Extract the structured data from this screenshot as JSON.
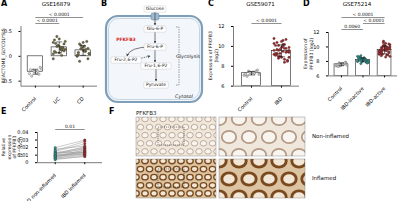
{
  "chart_data": [
    {
      "panel": "A",
      "type": "bar",
      "title": "GSE16879",
      "y_label": "REACTOME_GLYCOLYSIS",
      "categories": [
        "Control",
        "UC",
        "CD"
      ],
      "values": [
        -0.31,
        0.18,
        0.12
      ],
      "errors": [
        0.05,
        0.11,
        0.1
      ],
      "points": [
        [
          -0.35,
          -0.3,
          -0.28,
          -0.25,
          -0.33,
          -0.4,
          -0.22,
          -0.3,
          -0.27,
          -0.36,
          -0.31
        ],
        [
          0.05,
          0.12,
          0.2,
          0.3,
          0.15,
          0.08,
          0.25,
          0.35,
          0.1,
          0.18,
          0.22,
          0.28,
          0.02,
          0.4,
          0.14,
          0.19,
          0.26,
          0.11,
          0.07,
          0.33,
          0.16,
          0.21,
          -0.05,
          0.13
        ],
        [
          0.0,
          0.1,
          0.15,
          0.05,
          0.2,
          0.25,
          -0.05,
          0.12,
          0.08,
          0.3,
          0.18,
          0.02,
          0.14,
          0.22,
          0.06,
          0.1,
          -0.1,
          0.16,
          0.28,
          0.04
        ]
      ],
      "colors": [
        "#e0e0e0",
        "#6e6a3e",
        "#6e6a3e"
      ],
      "ylim": [
        -0.6,
        0.6
      ],
      "yticks": [
        -0.5,
        0,
        0.5
      ],
      "annotations": [
        {
          "text": "< 0.0001",
          "between": [
            "Control",
            "UC"
          ]
        },
        {
          "text": "< 0.0001",
          "between": [
            "Control",
            "CD"
          ]
        }
      ]
    },
    {
      "panel": "C",
      "type": "bar",
      "title": "GSE59071",
      "y_label": "Expression of PFKFB3 (log2)",
      "categories": [
        "Control",
        "IBD"
      ],
      "values": [
        7.3,
        9.55
      ],
      "errors": [
        0.18,
        0.6
      ],
      "points": [
        [
          7.1,
          7.3,
          7.5,
          7.2,
          7.4,
          7.0,
          7.6,
          7.3,
          7.2,
          7.5,
          7.4
        ],
        [
          9.2,
          9.8,
          10.1,
          8.9,
          9.5,
          10.4,
          8.6,
          9.9,
          9.3,
          10.7,
          9.0,
          9.6,
          10.2,
          8.8,
          9.4,
          10.0,
          9.7,
          8.5,
          10.5,
          9.1,
          9.8,
          9.3,
          10.3,
          8.7,
          9.6,
          9.9,
          10.6,
          9.2,
          9.5,
          8.9,
          10.1,
          9.4,
          9.7,
          10.8,
          8.4,
          9.0,
          9.6,
          10.2,
          9.3,
          9.5
        ]
      ],
      "colors": [
        "#cfcfcf",
        "#a0282a"
      ],
      "ylim": [
        6,
        12
      ],
      "yticks": [
        6,
        8,
        10,
        12
      ],
      "annotations": [
        {
          "text": "< 0.0001",
          "between": [
            "Control",
            "IBD"
          ]
        }
      ]
    },
    {
      "panel": "D",
      "type": "bar",
      "title": "GSE75214",
      "y_label": "Expression of PFKFB3 (log2)",
      "categories": [
        "Control",
        "IBD-inactive",
        "IBD-active"
      ],
      "values": [
        7.6,
        8.2,
        9.6
      ],
      "errors": [
        0.19,
        0.26,
        0.55
      ],
      "points": [
        [
          7.4,
          7.6,
          7.8,
          7.5,
          7.7,
          7.3,
          7.9,
          7.6,
          7.5,
          7.8,
          7.4
        ],
        [
          8.0,
          8.3,
          8.5,
          7.9,
          8.2,
          8.6,
          7.8,
          8.1,
          8.4,
          8.2,
          8.0,
          8.7,
          8.3,
          7.7,
          8.1,
          8.5,
          8.2,
          8.0,
          8.4,
          8.6,
          7.9,
          8.3,
          8.1,
          8.2,
          8.8,
          8.0,
          8.4,
          8.2,
          7.8,
          8.3
        ],
        [
          9.4,
          10.0,
          9.0,
          9.7,
          10.5,
          8.8,
          9.3,
          10.2,
          9.6,
          8.9,
          10.8,
          9.1,
          9.8,
          9.5,
          10.3,
          8.6,
          9.9,
          9.2,
          10.1,
          9.4,
          9.7,
          10.6,
          9.0,
          9.5,
          10.0,
          8.7,
          9.8,
          9.3,
          10.4,
          9.6,
          9.1,
          9.9,
          10.2,
          9.4,
          8.9,
          9.7,
          10.0,
          9.5,
          9.2,
          9.8
        ]
      ],
      "colors": [
        "#cfcfcf",
        "#2a8f8a",
        "#a0282a"
      ],
      "ylim": [
        6,
        12
      ],
      "yticks": [
        6,
        8,
        10,
        12
      ],
      "annotations": [
        {
          "text": "0.0060",
          "between": [
            "Control",
            "IBD-inactive"
          ]
        },
        {
          "text": "< 0.0001",
          "between": [
            "IBD-inactive",
            "IBD-active"
          ]
        },
        {
          "text": "< 0.0001",
          "between": [
            "Control",
            "IBD-active"
          ]
        }
      ]
    },
    {
      "panel": "E",
      "type": "paired",
      "y_label": "Relative expression of PFKFB3 (2^-ΔCt)",
      "categories": [
        "IBD non-inflamed",
        "IBD inflamed"
      ],
      "points": [
        [
          0.008,
          0.012,
          0.005,
          0.015,
          0.01,
          0.007,
          0.02,
          0.009,
          0.013,
          0.006,
          0.011,
          0.018,
          0.004,
          0.01,
          0.014,
          0.008,
          0.016,
          0.012,
          0.006,
          0.009
        ],
        [
          0.015,
          0.018,
          0.008,
          0.025,
          0.012,
          0.014,
          0.03,
          0.011,
          0.02,
          0.01,
          0.019,
          0.022,
          0.009,
          0.016,
          0.013,
          0.017,
          0.028,
          0.021,
          0.012,
          0.014
        ]
      ],
      "colors": [
        "#2a8f8a",
        "#a0282a"
      ],
      "ylim": [
        0,
        0.04
      ],
      "yticks": [
        0,
        0.01,
        0.02,
        0.03,
        0.04
      ],
      "annotations": [
        {
          "text": "0.01",
          "between": [
            "IBD non-inflamed",
            "IBD inflamed"
          ]
        }
      ]
    }
  ],
  "diagram": {
    "panel": "B",
    "nodes": {
      "glucose": "Glucose",
      "g6p": "Glu-6-P",
      "f6p": "Fru-6-P",
      "pfkfb3": "PFKFB3",
      "f26p2": "Fru-2,6-P2",
      "f16p2": "Fru-1,6-P2",
      "pyruvate": "Pyruvate",
      "glycolysis": "Glycolysis",
      "cytosol": "Cytosol"
    }
  },
  "micrographs": {
    "panel": "F",
    "title": "PFKFB3",
    "rows": [
      "Non-inflamed",
      "Inflamed"
    ]
  }
}
